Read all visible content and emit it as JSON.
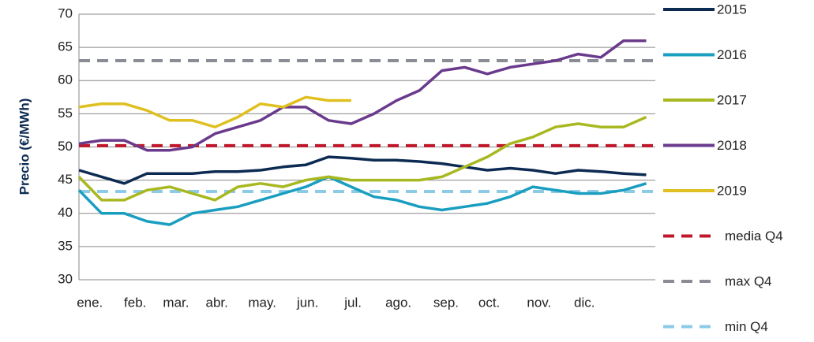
{
  "chart_data": {
    "type": "line",
    "y_label": "Precio (€/MWh)",
    "x": [
      0,
      0.5,
      1,
      1.5,
      2,
      2.5,
      3,
      3.5,
      4,
      4.5,
      5,
      5.5,
      6,
      6.5,
      7,
      7.5,
      8,
      8.5,
      9,
      9.5,
      10,
      10.5,
      11,
      11.5,
      12,
      12.5
    ],
    "xlim": [
      0,
      12.7
    ],
    "xticks": [
      {
        "value": 0.1,
        "label": "ene."
      },
      {
        "value": 1.1,
        "label": "feb."
      },
      {
        "value": 2.0,
        "label": "mar."
      },
      {
        "value": 2.9,
        "label": "abr."
      },
      {
        "value": 3.9,
        "label": "may."
      },
      {
        "value": 4.9,
        "label": "jun."
      },
      {
        "value": 5.9,
        "label": "jul."
      },
      {
        "value": 6.9,
        "label": "ago."
      },
      {
        "value": 7.95,
        "label": "sep."
      },
      {
        "value": 8.9,
        "label": "oct."
      },
      {
        "value": 10.0,
        "label": "nov."
      },
      {
        "value": 11.0,
        "label": "dic."
      }
    ],
    "ylim": [
      30,
      70
    ],
    "yticks": [
      30,
      35,
      40,
      45,
      50,
      55,
      60,
      65,
      70
    ],
    "grid": true,
    "legend": "right",
    "series": [
      {
        "name": "2015",
        "color": "#0d2b52",
        "values": [
          46.5,
          45.5,
          44.5,
          46,
          46,
          46,
          46.3,
          46.3,
          46.5,
          47,
          47.3,
          48.5,
          48.3,
          48,
          48,
          47.8,
          47.5,
          47,
          46.5,
          46.8,
          46.5,
          46,
          46.5,
          46.3,
          46,
          45.8
        ]
      },
      {
        "name": "2016",
        "color": "#1a9ec0",
        "values": [
          43.5,
          40,
          40,
          38.8,
          38.3,
          40,
          40.5,
          41,
          42,
          43,
          44,
          45.5,
          44,
          42.5,
          42,
          41,
          40.5,
          41,
          41.5,
          42.5,
          44,
          43.5,
          43,
          43,
          43.5,
          44.5
        ]
      },
      {
        "name": "2017",
        "color": "#a8b820",
        "values": [
          45.5,
          42,
          42,
          43.5,
          44,
          43,
          42,
          44,
          44.5,
          44,
          45,
          45.5,
          45,
          45,
          45,
          45,
          45.5,
          47,
          48.5,
          50.5,
          51.5,
          53,
          53.5,
          53,
          53,
          54.5
        ]
      },
      {
        "name": "2018",
        "color": "#6a3a8c",
        "values": [
          50.5,
          51,
          51,
          49.5,
          49.5,
          50,
          52,
          53,
          54,
          56,
          56,
          54,
          53.5,
          55,
          57,
          58.5,
          61.5,
          62,
          61,
          62,
          62.5,
          63,
          64,
          63.5,
          66,
          66
        ]
      },
      {
        "name": "2019",
        "color": "#e0c020",
        "values": [
          56,
          56.5,
          56.5,
          55.5,
          54,
          54,
          53,
          54.5,
          56.5,
          56,
          57.5,
          57,
          57,
          null,
          null,
          null,
          null,
          null,
          null,
          null,
          null,
          null,
          null,
          null,
          null,
          null
        ]
      }
    ],
    "reference_lines": [
      {
        "name": "media Q4",
        "value": 50.2,
        "color": "#c0182a"
      },
      {
        "name": "max Q4",
        "value": 63,
        "color": "#8a8d96"
      },
      {
        "name": "min Q4",
        "value": 43.3,
        "color": "#8ccbe6"
      }
    ]
  }
}
